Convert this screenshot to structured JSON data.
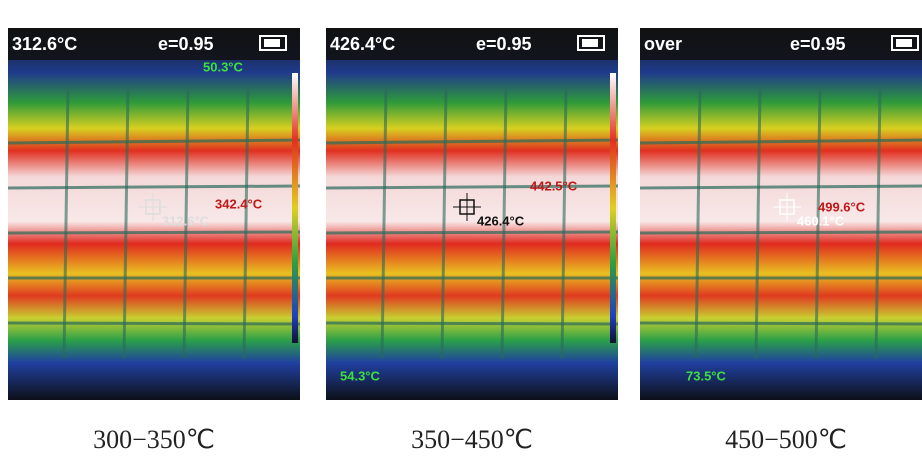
{
  "panels": [
    {
      "reading": "312.6°C",
      "emissivity": "e=0.95",
      "min_label": "50.3°C",
      "max_label": "342.4°C",
      "center_label": "312.6°C",
      "caption": "300−350℃"
    },
    {
      "reading": "426.4°C",
      "emissivity": "e=0.95",
      "min_label": "54.3°C",
      "max_label": "442.5°C",
      "center_label": "426.4°C",
      "caption": "350−450℃"
    },
    {
      "reading": "over",
      "emissivity": "e=0.95",
      "min_label": "73.5°C",
      "max_label": "499.6°C",
      "center_label": "460.1°C",
      "caption": "450−500℃"
    }
  ]
}
